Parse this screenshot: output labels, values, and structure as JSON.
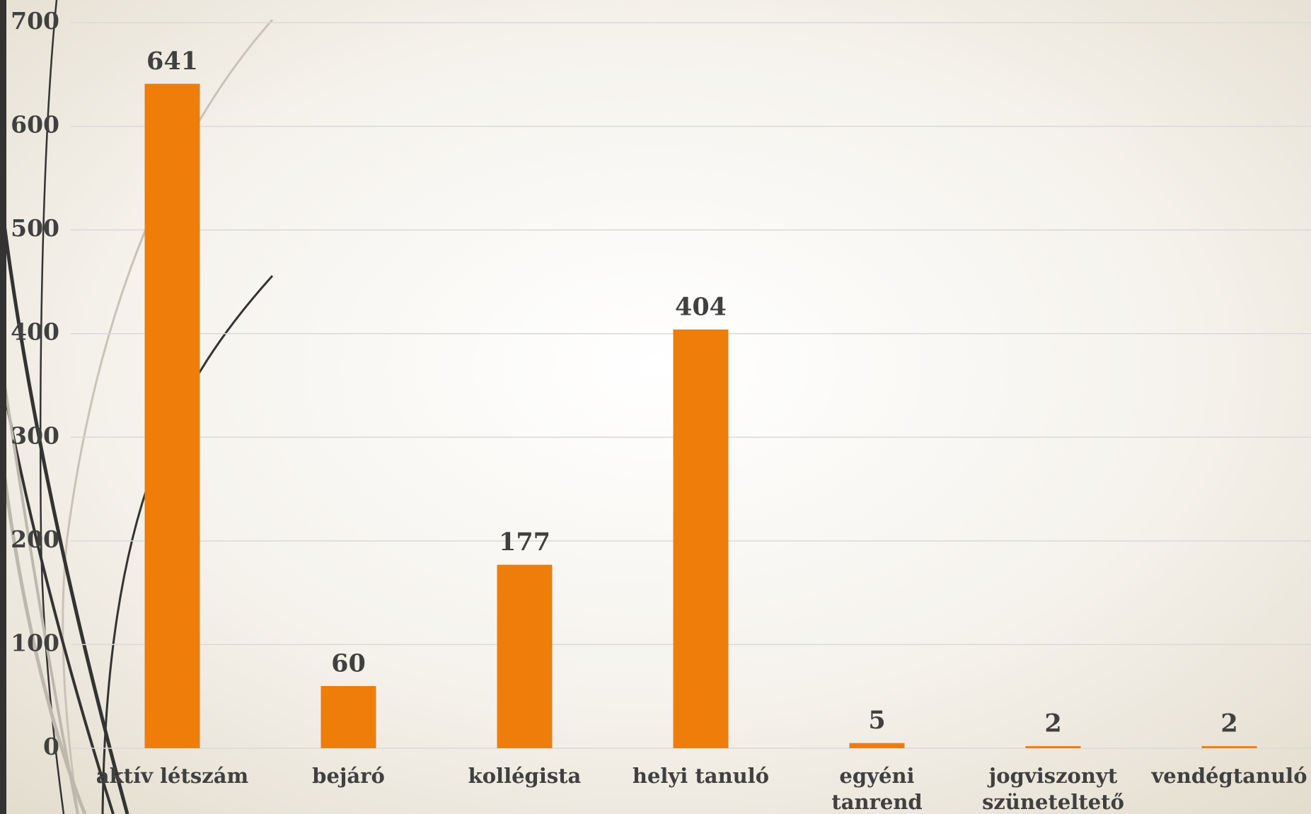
{
  "chart_data": {
    "type": "bar",
    "categories": [
      "aktív létszám",
      "bejáró",
      "kollégista",
      "helyi tanuló",
      "egyéni tanrend",
      "jogviszonyt szüneteltető",
      "vendégtanuló"
    ],
    "values": [
      641,
      60,
      177,
      404,
      5,
      2,
      2
    ],
    "color": "#ef7d0a",
    "ylim": [
      0,
      700
    ],
    "yticks": [
      0,
      100,
      200,
      300,
      400,
      500,
      600,
      700
    ],
    "grid": true
  }
}
